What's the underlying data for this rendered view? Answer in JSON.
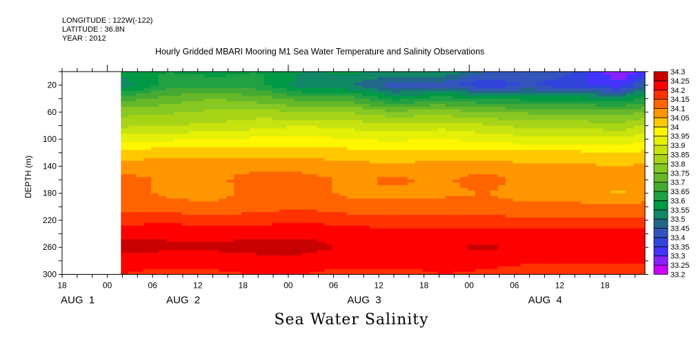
{
  "header": {
    "longitude": "LONGITUDE : 122W(-122)",
    "latitude": "LATITUDE : 36.8N",
    "year": "YEAR : 2012",
    "title": "Hourly Gridded MBARI Mooring M1 Sea Water Temperature and Salinity Observations"
  },
  "chart_data": {
    "type": "heatmap",
    "title": "Hourly Gridded MBARI Mooring M1 Sea Water Temperature and Salinity Observations",
    "xlabel": "Sea Water Salinity",
    "ylabel": "DEPTH (m)",
    "x_units": "hours since Aug 2 00:00, 2012",
    "xlim": [
      -6,
      71.5
    ],
    "ylim": [
      300,
      0
    ],
    "y_ticks": [
      "20",
      "60",
      "100",
      "140",
      "180",
      "220",
      "260",
      "300"
    ],
    "x_tick_labels": [
      {
        "t": -6,
        "label": "18"
      },
      {
        "t": 0,
        "label": "00"
      },
      {
        "t": 6,
        "label": "06"
      },
      {
        "t": 12,
        "label": "12"
      },
      {
        "t": 18,
        "label": "18"
      },
      {
        "t": 24,
        "label": "00"
      },
      {
        "t": 30,
        "label": "06"
      },
      {
        "t": 36,
        "label": "12"
      },
      {
        "t": 42,
        "label": "18"
      },
      {
        "t": 48,
        "label": "00"
      },
      {
        "t": 54,
        "label": "06"
      },
      {
        "t": 60,
        "label": "12"
      },
      {
        "t": 66,
        "label": "18"
      }
    ],
    "date_labels": [
      {
        "t": -6,
        "label": "AUG  1"
      },
      {
        "t": 8,
        "label": "AUG  2"
      },
      {
        "t": 32,
        "label": "AUG  3"
      },
      {
        "t": 56,
        "label": "AUG  4"
      }
    ],
    "colorbar": {
      "levels": [
        33.2,
        33.25,
        33.3,
        33.35,
        33.4,
        33.45,
        33.5,
        33.55,
        33.6,
        33.65,
        33.7,
        33.75,
        33.8,
        33.85,
        33.9,
        33.95,
        34,
        34.05,
        34.1,
        34.15,
        34.2,
        34.25,
        34.3
      ],
      "level_labels": [
        "33.2",
        "33.25",
        "33.3",
        "33.35",
        "33.4",
        "33.45",
        "33.5",
        "33.55",
        "33.6",
        "33.65",
        "33.7",
        "33.75",
        "33.8",
        "33.85",
        "33.9",
        "33.95",
        "34",
        "34.05",
        "34.1",
        "34.15",
        "34.2",
        "34.25",
        "34.3"
      ],
      "colors": [
        "#cc00ff",
        "#8822ff",
        "#4433ff",
        "#3344dd",
        "#3355bb",
        "#226688",
        "#118866",
        "#009944",
        "#22a044",
        "#44aa33",
        "#66b82a",
        "#88c822",
        "#a8d418",
        "#c8e410",
        "#e4f008",
        "#fff600",
        "#ffc800",
        "#ff9600",
        "#ff6400",
        "#ff3200",
        "#ff0000",
        "#c80000",
        "#9a0000"
      ]
    },
    "depths": [
      0,
      20,
      40,
      60,
      80,
      100,
      120,
      140,
      160,
      180,
      200,
      220,
      240,
      260,
      280,
      300
    ],
    "times": [
      2,
      8,
      14,
      20,
      26,
      32,
      38,
      44,
      50,
      56,
      62,
      68,
      71
    ],
    "values": [
      [
        33.57,
        33.52,
        33.68,
        33.78,
        33.84,
        33.93,
        34.02,
        34.07,
        34.12,
        34.12,
        34.13,
        34.18,
        34.23,
        34.27,
        34.23,
        34.2
      ],
      [
        33.6,
        33.62,
        33.72,
        33.79,
        33.85,
        33.94,
        34.03,
        34.08,
        34.09,
        34.09,
        34.12,
        34.19,
        34.24,
        34.26,
        34.22,
        34.18
      ],
      [
        33.58,
        33.64,
        33.75,
        33.81,
        33.86,
        33.95,
        34.03,
        34.08,
        34.09,
        34.08,
        34.11,
        34.17,
        34.23,
        34.26,
        34.22,
        34.19
      ],
      [
        33.6,
        33.62,
        33.72,
        33.82,
        33.88,
        33.96,
        34.03,
        34.09,
        34.12,
        34.12,
        34.13,
        34.18,
        34.24,
        34.27,
        34.23,
        34.2
      ],
      [
        33.55,
        33.52,
        33.68,
        33.8,
        33.9,
        33.97,
        34.03,
        34.08,
        34.12,
        34.12,
        34.14,
        34.19,
        34.24,
        34.27,
        34.23,
        34.2
      ],
      [
        33.56,
        33.5,
        33.68,
        33.8,
        33.88,
        33.95,
        34.02,
        34.07,
        34.09,
        34.09,
        34.12,
        34.18,
        34.23,
        34.24,
        34.22,
        34.18
      ],
      [
        33.55,
        33.42,
        33.57,
        33.76,
        33.87,
        33.94,
        34.01,
        34.06,
        34.11,
        34.09,
        34.12,
        34.17,
        34.22,
        34.24,
        34.22,
        34.18
      ],
      [
        33.55,
        33.42,
        33.63,
        33.78,
        33.88,
        33.95,
        34.02,
        34.07,
        34.09,
        34.09,
        34.12,
        34.17,
        34.22,
        34.24,
        34.22,
        34.2
      ],
      [
        33.45,
        33.36,
        33.6,
        33.75,
        33.86,
        33.93,
        34.02,
        34.08,
        34.12,
        34.1,
        34.12,
        34.17,
        34.22,
        34.26,
        34.22,
        34.19
      ],
      [
        33.45,
        33.4,
        33.58,
        33.74,
        33.83,
        33.92,
        34.01,
        34.06,
        34.08,
        34.08,
        34.11,
        34.16,
        34.22,
        34.24,
        34.21,
        34.17
      ],
      [
        33.4,
        33.36,
        33.58,
        33.74,
        33.83,
        33.92,
        34.01,
        34.06,
        34.08,
        34.08,
        34.11,
        34.16,
        34.22,
        34.24,
        34.21,
        34.17
      ],
      [
        33.25,
        33.32,
        33.56,
        33.72,
        33.82,
        33.91,
        34.0,
        34.05,
        34.08,
        34.04,
        34.11,
        34.16,
        34.22,
        34.24,
        34.21,
        34.17
      ],
      [
        33.3,
        33.45,
        33.6,
        33.75,
        33.85,
        33.93,
        34.01,
        34.06,
        34.08,
        34.08,
        34.11,
        34.16,
        34.22,
        34.24,
        34.21,
        34.15
      ]
    ]
  }
}
